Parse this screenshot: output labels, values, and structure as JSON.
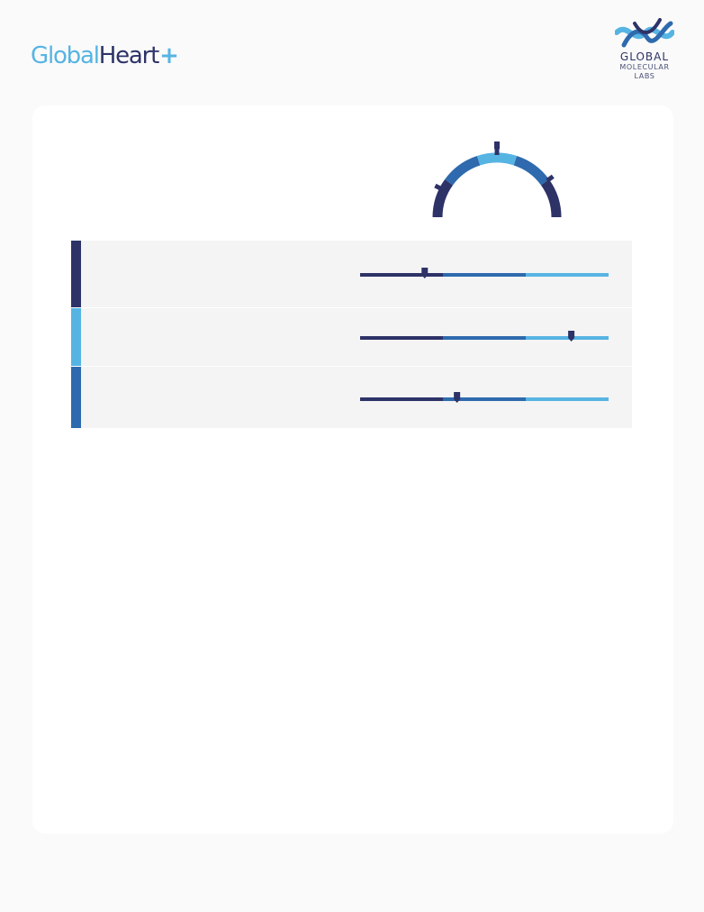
{
  "header": {
    "brand": {
      "part1": "Global",
      "part2": "Heart",
      "plus": "+"
    },
    "lab_logo": {
      "line1": "GLOBAL",
      "line2": "MOLECULAR",
      "line3": "LABS"
    }
  },
  "colors": {
    "navy": "#2d3367",
    "mid_blue": "#2e6aad",
    "light_blue": "#56b4e3",
    "row_bg": "#f4f4f4"
  },
  "gauge": {
    "segments": [
      "navy",
      "mid_blue",
      "light_blue",
      "mid_blue",
      "navy"
    ],
    "marker_positions": [
      0.15,
      0.5,
      0.8
    ],
    "pointer": 0.5
  },
  "risk_rows": [
    {
      "accent": "navy",
      "label": "",
      "marker": 0.26
    },
    {
      "accent": "light_blue",
      "label": "",
      "marker": 0.85
    },
    {
      "accent": "mid_blue",
      "label": "",
      "marker": 0.39
    }
  ]
}
